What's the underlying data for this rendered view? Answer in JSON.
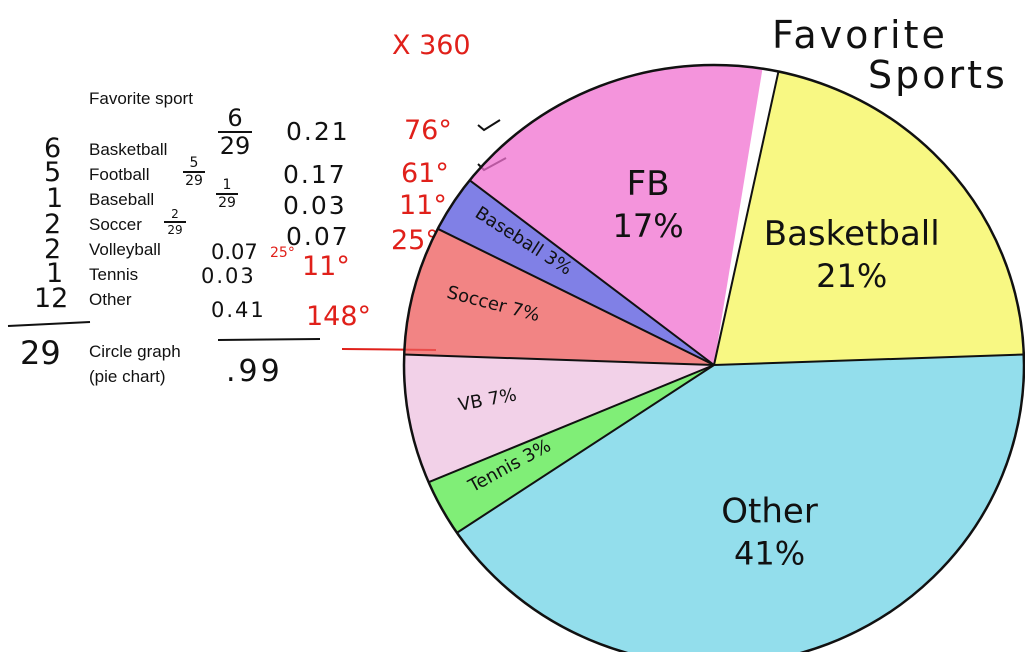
{
  "annotation_top": "X 360",
  "table": {
    "heading": "Favorite sport",
    "rows": [
      {
        "count": "6",
        "sport": "Basketball",
        "decimal": "0.21",
        "degrees": "76°"
      },
      {
        "count": "5",
        "sport": "Football",
        "decimal": "0.17",
        "degrees": "61°"
      },
      {
        "count": "1",
        "sport": "Baseball",
        "decimal": "0.03",
        "degrees": "11°"
      },
      {
        "count": "2",
        "sport": "Soccer",
        "decimal": "0.07",
        "degrees": "25°"
      },
      {
        "count": "2",
        "sport": "Volleyball",
        "decimal": "0.07",
        "degrees": "25°"
      },
      {
        "count": "1",
        "sport": "Tennis",
        "decimal": "0.03",
        "degrees": "11°"
      },
      {
        "count": "12",
        "sport": "Other",
        "decimal": "0.41",
        "degrees": "148°"
      }
    ],
    "total_count": "29",
    "total_decimal": ".99",
    "caption_line1": "Circle graph",
    "caption_line2": "(pie chart)",
    "fractions": [
      {
        "num": "6",
        "den": "29"
      },
      {
        "num": "5",
        "den": "29"
      },
      {
        "num": "1",
        "den": "29"
      },
      {
        "num": "2",
        "den": "29"
      }
    ]
  },
  "chart_data": {
    "type": "pie",
    "title": "Favorite Sports",
    "slices": [
      {
        "label": "Basketball",
        "percent_label": "21%",
        "degrees": 76,
        "color": "#f5f55a"
      },
      {
        "label": "Other",
        "percent_label": "41%",
        "degrees": 148,
        "color": "#6fd3e6"
      },
      {
        "label": "Tennis",
        "percent_label": "3%",
        "degrees": 11,
        "color": "#55e84a"
      },
      {
        "label": "VB",
        "percent_label": "7%",
        "degrees": 25,
        "color": "#eec2e0"
      },
      {
        "label": "Soccer",
        "percent_label": "7%",
        "degrees": 25,
        "color": "#ee5b5b"
      },
      {
        "label": "Baseball",
        "percent_label": "3%",
        "degrees": 11,
        "color": "#5555dd"
      },
      {
        "label": "FB",
        "percent_label": "17%",
        "degrees": 61,
        "color": "#f070d0"
      }
    ]
  },
  "colors": {
    "ink": "#111111",
    "red_ink": "#e0201a"
  }
}
